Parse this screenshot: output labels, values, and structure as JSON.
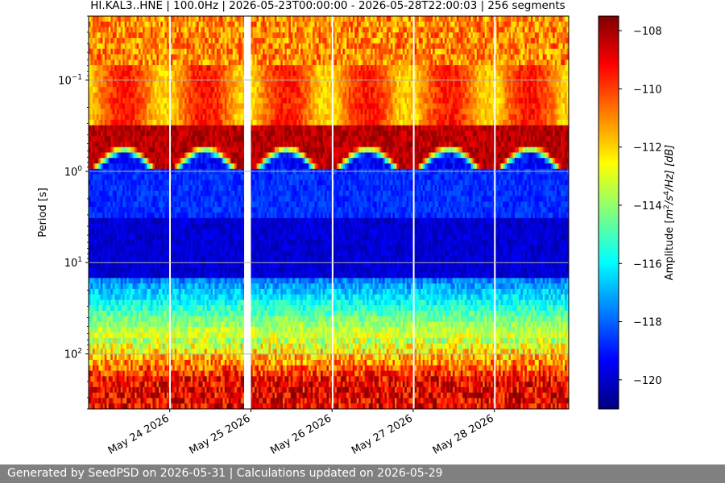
{
  "chart_data": {
    "type": "heatmap",
    "title": "HI.KAL3..HNE | 100.0Hz | 2026-05-23T00:00:00 - 2026-05-28T22:00:03 | 256 segments",
    "xlabel": "",
    "ylabel": "Period [s]",
    "x_range": [
      "2026-05-23T00:00:00",
      "2026-05-28T22:00:03"
    ],
    "y_scale": "log",
    "y_range": [
      0.02,
      400
    ],
    "y_inverted": true,
    "x_ticks": [
      "May 24 2026",
      "May 25 2026",
      "May 26 2026",
      "May 27 2026",
      "May 28 2026"
    ],
    "y_ticks": [
      {
        "value": 0.1,
        "base": "10",
        "exp": "−1"
      },
      {
        "value": 1,
        "base": "10",
        "exp": "0"
      },
      {
        "value": 10,
        "base": "10",
        "exp": "1"
      },
      {
        "value": 100,
        "base": "10",
        "exp": "2"
      }
    ],
    "grid": "horizontal",
    "colormap": "jet",
    "colorbar": {
      "label": "Amplitude [m²/s⁴/Hz] [dB]",
      "label_parts": {
        "pre": "Amplitude [",
        "m": "m",
        "e1": "2",
        "mid": "/s",
        "e2": "4",
        "post": "/Hz] [dB]"
      },
      "range": [
        -121,
        -107.5
      ],
      "ticks": [
        -108,
        -110,
        -112,
        -114,
        -116,
        -118,
        -120
      ],
      "tick_labels": [
        "−108",
        "−110",
        "−112",
        "−114",
        "−116",
        "−118",
        "−120"
      ]
    },
    "data_gaps": [
      [
        "2026-05-24T22:00:00",
        "2026-05-25T00:00:00"
      ],
      [
        "2026-05-23T23:50:00",
        "2026-05-24T00:10:00"
      ],
      [
        "2026-05-25T23:55:00",
        "2026-05-26T00:05:00"
      ],
      [
        "2026-05-26T23:55:00",
        "2026-05-27T00:05:00"
      ],
      [
        "2026-05-27T23:55:00",
        "2026-05-28T00:05:00"
      ]
    ],
    "spectral_bands": {
      "microseism_high_db": -109,
      "daytime_high_frequency_db": -109,
      "noise_floor_db": -120.5,
      "long_period_db": -109
    }
  },
  "footer": {
    "text": "Generated by SeedPSD on 2026-05-31 | Calculations updated on 2026-05-29"
  }
}
